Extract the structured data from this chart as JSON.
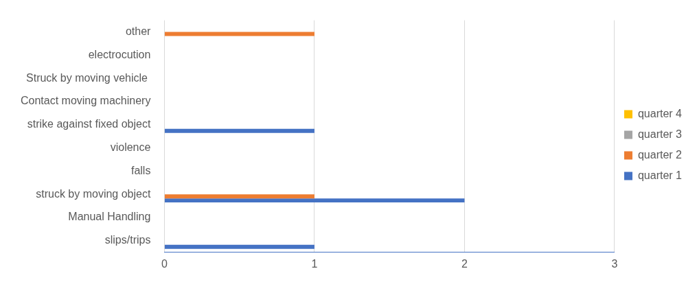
{
  "chart_data": {
    "type": "bar",
    "orientation": "horizontal",
    "categories": [
      "other",
      "electrocution",
      "Struck by moving vehicle ",
      "Contact moving machinery",
      "strike against fixed object",
      "violence",
      "falls",
      "struck by moving object",
      "Manual Handling",
      "slips/trips"
    ],
    "series": [
      {
        "name": "quarter 1",
        "color": "#4472c4",
        "values": [
          0,
          0,
          0,
          0,
          1,
          0,
          0,
          2,
          0,
          1
        ]
      },
      {
        "name": "quarter 2",
        "color": "#ed7d31",
        "values": [
          1,
          0,
          0,
          0,
          0,
          0,
          0,
          1,
          0,
          0
        ]
      },
      {
        "name": "quarter 3",
        "color": "#a5a5a5",
        "values": [
          0,
          0,
          0,
          0,
          0,
          0,
          0,
          0,
          0,
          0
        ]
      },
      {
        "name": "quarter 4",
        "color": "#ffc000",
        "values": [
          0,
          0,
          0,
          0,
          0,
          0,
          0,
          0,
          0,
          0
        ]
      }
    ],
    "xlim": [
      0,
      3
    ],
    "xticks": [
      0,
      1,
      2,
      3
    ],
    "grid": "x",
    "legend": "right"
  }
}
